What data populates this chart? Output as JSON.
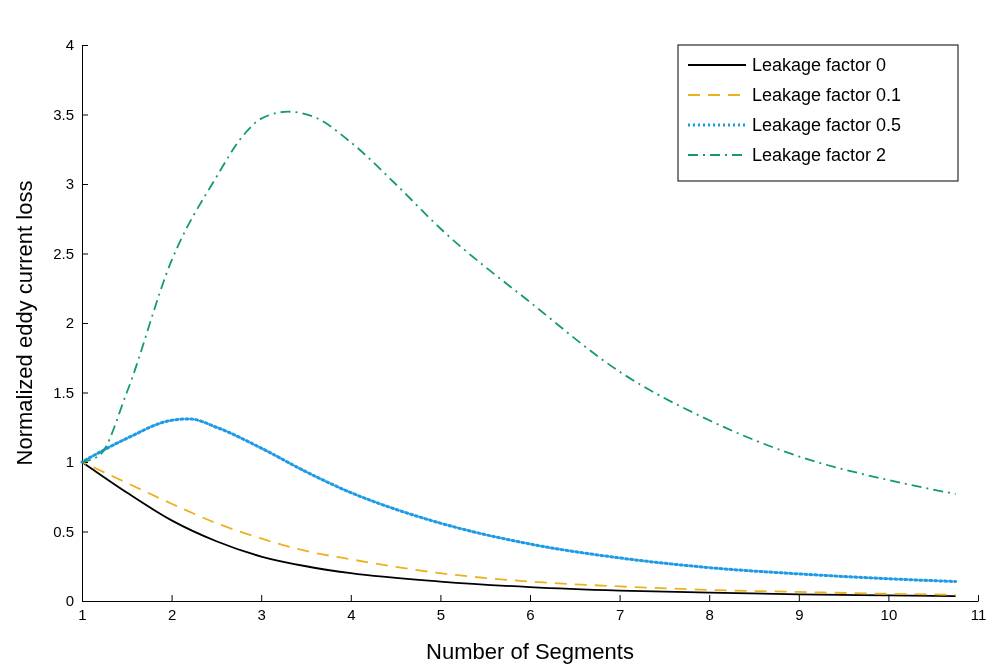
{
  "chart_data": {
    "type": "line",
    "xlabel": "Number of Segments",
    "ylabel": "Normalized eddy current loss",
    "xlim": [
      1,
      11
    ],
    "xticks": [
      1,
      2,
      3,
      4,
      5,
      6,
      7,
      8,
      9,
      10,
      11
    ],
    "ylim": [
      0,
      4
    ],
    "yticks": [
      0,
      0.5,
      1,
      1.5,
      2,
      2.5,
      3,
      3.5,
      4
    ],
    "grid": false,
    "legend": "top right",
    "marker": "none",
    "series": [
      {
        "name": "Leakage factor 0",
        "color": "#000000",
        "line_style": "solid",
        "x": [
          1,
          1.5,
          2,
          2.5,
          3,
          3.5,
          4,
          5,
          6,
          7,
          8,
          9,
          10,
          10.75
        ],
        "values": [
          1,
          0.78,
          0.58,
          0.43,
          0.32,
          0.25,
          0.2,
          0.14,
          0.1,
          0.075,
          0.06,
          0.048,
          0.04,
          0.035
        ]
      },
      {
        "name": "Leakage factor 0.1",
        "color": "#edb120",
        "line_style": "dashed",
        "x": [
          1,
          1.5,
          2,
          2.5,
          3,
          3.5,
          4,
          5,
          6,
          7,
          8,
          9,
          10,
          10.75
        ],
        "values": [
          1,
          0.85,
          0.7,
          0.56,
          0.45,
          0.36,
          0.3,
          0.2,
          0.14,
          0.105,
          0.08,
          0.065,
          0.052,
          0.045
        ]
      },
      {
        "name": "Leakage factor 0.5",
        "color": "#1e9be6",
        "line_style": "dotted",
        "x": [
          1,
          1.5,
          2,
          2.2,
          2.5,
          3,
          3.5,
          4,
          4.5,
          5,
          6,
          7,
          8,
          9,
          10,
          10.75
        ],
        "values": [
          1,
          1.17,
          1.3,
          1.31,
          1.25,
          1.1,
          0.93,
          0.78,
          0.66,
          0.56,
          0.41,
          0.31,
          0.24,
          0.195,
          0.16,
          0.14
        ]
      },
      {
        "name": "Leakage factor 2",
        "color": "#139a6e",
        "line_style": "dashdot",
        "x": [
          1,
          1.2,
          1.5,
          2,
          2.5,
          2.8,
          3,
          3.3,
          3.6,
          4,
          4.5,
          5,
          6,
          7,
          8,
          9,
          10,
          10.75
        ],
        "values": [
          1,
          1.05,
          1.5,
          2.45,
          3.05,
          3.35,
          3.47,
          3.52,
          3.48,
          3.3,
          3,
          2.68,
          2.15,
          1.65,
          1.3,
          1.04,
          0.87,
          0.77
        ]
      }
    ]
  }
}
